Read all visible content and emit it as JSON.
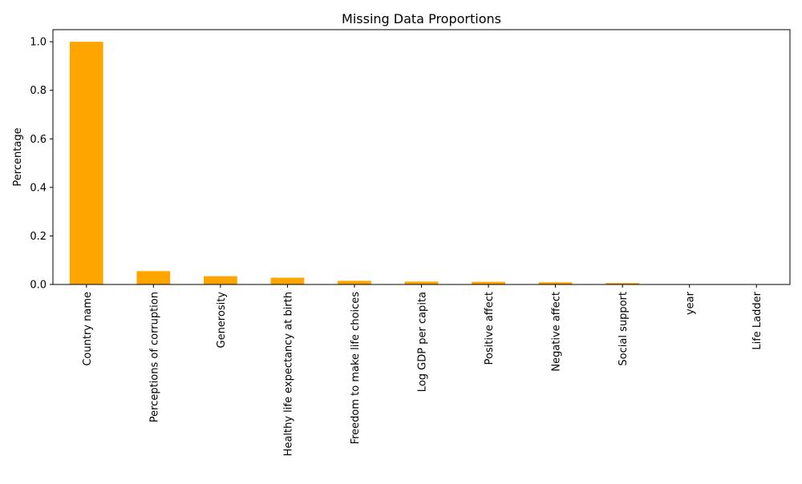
{
  "chart_data": {
    "type": "bar",
    "title": "Missing Data Proportions",
    "xlabel": "",
    "ylabel": "Percentage",
    "categories": [
      "Country name",
      "Perceptions of corruption",
      "Generosity",
      "Healthy life expectancy at birth",
      "Freedom to make life choices",
      "Log GDP per capita",
      "Positive affect",
      "Negative affect",
      "Social support",
      "year",
      "Life Ladder"
    ],
    "values": [
      1.0,
      0.055,
      0.034,
      0.028,
      0.015,
      0.012,
      0.011,
      0.009,
      0.006,
      0.0,
      0.0
    ],
    "ylim": [
      0,
      1.05
    ],
    "yticks": [
      0.0,
      0.2,
      0.4,
      0.6,
      0.8,
      1.0
    ],
    "ytick_labels": [
      "0.0",
      "0.2",
      "0.4",
      "0.6",
      "0.8",
      "1.0"
    ],
    "bar_color": "#FFA500",
    "grid": false
  }
}
